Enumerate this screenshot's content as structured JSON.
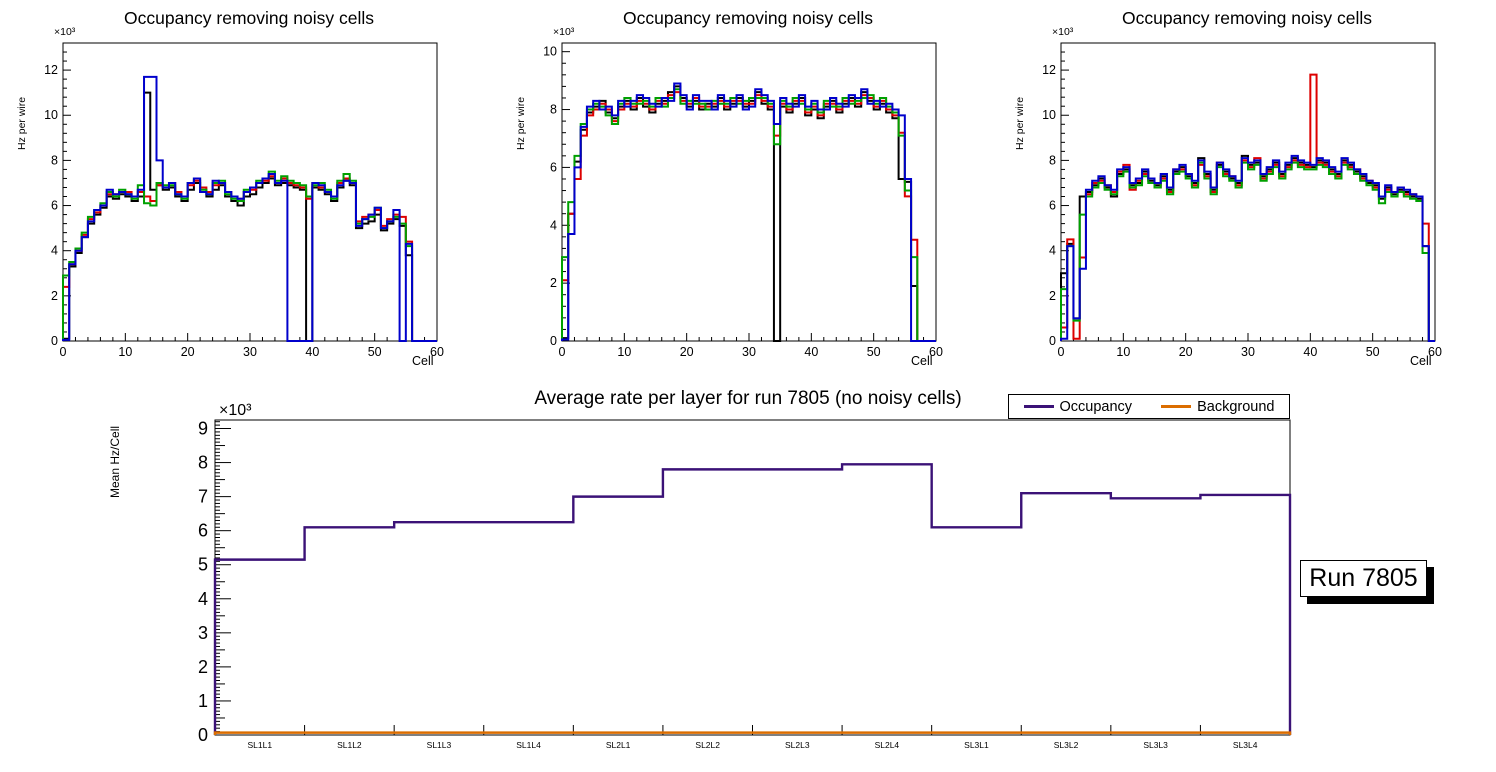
{
  "canvas": {
    "background": "#ffffff"
  },
  "chart_data": [
    {
      "id": "occupancy-hist-1",
      "type": "step-histogram",
      "title": "Occupancy removing noisy cells",
      "xlabel": "Cell",
      "ylabel": "Hz per wire",
      "power_label": "×10³",
      "unit": "values in ×10³ Hz",
      "xlim": [
        0,
        60
      ],
      "ylim": [
        0,
        13.2
      ],
      "xticks": [
        0,
        10,
        20,
        30,
        40,
        50,
        60
      ],
      "yticks": [
        0,
        2,
        4,
        6,
        8,
        10,
        12
      ],
      "x_minor_step": 2,
      "y_minor_step": 0.4,
      "grid": false,
      "series": [
        {
          "name": "black",
          "color": "#000000",
          "values": [
            0.1,
            3.3,
            3.9,
            4.6,
            5.2,
            5.6,
            5.9,
            6.4,
            6.3,
            6.5,
            6.4,
            6.2,
            6.4,
            11.0,
            6.7,
            6.9,
            6.7,
            6.8,
            6.4,
            6.2,
            6.7,
            7.0,
            6.6,
            6.4,
            6.7,
            6.9,
            6.4,
            6.2,
            6.0,
            6.4,
            6.5,
            6.8,
            7.0,
            7.2,
            6.9,
            7.0,
            6.9,
            6.8,
            6.7,
            0,
            6.8,
            6.7,
            6.5,
            6.2,
            6.8,
            7.1,
            6.9,
            5.0,
            5.2,
            5.3,
            5.6,
            4.9,
            5.2,
            5.4,
            5.1,
            3.8,
            0,
            0,
            0,
            0
          ]
        },
        {
          "name": "red",
          "color": "#DD0000",
          "values": [
            2.4,
            3.4,
            4.0,
            4.7,
            5.4,
            5.7,
            6.0,
            6.5,
            6.5,
            6.6,
            6.6,
            6.4,
            6.6,
            6.4,
            6.2,
            6.9,
            6.8,
            7.0,
            6.6,
            6.4,
            6.9,
            7.1,
            6.8,
            6.6,
            6.9,
            7.0,
            6.6,
            6.4,
            6.3,
            6.6,
            6.7,
            7.0,
            7.1,
            7.3,
            7.0,
            7.2,
            7.0,
            6.9,
            6.8,
            6.3,
            7.0,
            6.8,
            6.6,
            6.4,
            7.0,
            7.2,
            7.0,
            5.3,
            5.5,
            5.6,
            5.8,
            5.1,
            5.4,
            5.6,
            5.5,
            4.4,
            0,
            0,
            0,
            0
          ]
        },
        {
          "name": "green",
          "color": "#00A000",
          "values": [
            2.9,
            3.5,
            4.1,
            4.8,
            5.5,
            5.8,
            6.1,
            6.6,
            6.4,
            6.7,
            6.5,
            6.3,
            6.9,
            6.1,
            6.0,
            7.0,
            6.9,
            6.9,
            6.5,
            6.3,
            7.0,
            7.2,
            6.7,
            6.5,
            7.0,
            7.1,
            6.5,
            6.3,
            6.2,
            6.7,
            6.8,
            7.1,
            7.2,
            7.5,
            7.1,
            7.3,
            7.1,
            7.0,
            6.9,
            6.4,
            6.9,
            7.0,
            6.7,
            6.3,
            7.1,
            7.4,
            7.1,
            5.2,
            5.4,
            5.5,
            5.9,
            5.0,
            5.3,
            5.5,
            5.2,
            4.2,
            0,
            0,
            0,
            0
          ]
        },
        {
          "name": "blue",
          "color": "#0000CC",
          "values": [
            0.05,
            3.4,
            4.0,
            4.6,
            5.3,
            5.8,
            6.0,
            6.7,
            6.5,
            6.6,
            6.5,
            6.4,
            6.7,
            11.7,
            11.7,
            8.0,
            6.8,
            7.0,
            6.5,
            6.4,
            7.0,
            7.2,
            6.6,
            6.5,
            7.1,
            7.0,
            6.6,
            6.4,
            6.3,
            6.6,
            6.8,
            7.0,
            7.2,
            7.4,
            7.0,
            7.1,
            0,
            0,
            0,
            0,
            7.0,
            6.9,
            6.6,
            6.4,
            6.9,
            7.1,
            7.0,
            5.1,
            5.4,
            5.6,
            5.9,
            5.0,
            5.3,
            5.8,
            0,
            4.3,
            0,
            0,
            0,
            0
          ]
        }
      ]
    },
    {
      "id": "occupancy-hist-2",
      "type": "step-histogram",
      "title": "Occupancy removing noisy cells",
      "xlabel": "Cell",
      "ylabel": "Hz per wire",
      "power_label": "×10³",
      "unit": "values in ×10³ Hz",
      "xlim": [
        0,
        60
      ],
      "ylim": [
        0,
        10.3
      ],
      "xticks": [
        0,
        10,
        20,
        30,
        40,
        50,
        60
      ],
      "yticks": [
        0,
        2,
        4,
        6,
        8,
        10
      ],
      "x_minor_step": 2,
      "y_minor_step": 0.4,
      "grid": false,
      "series": [
        {
          "name": "black",
          "color": "#000000",
          "values": [
            0.1,
            4.4,
            6.2,
            7.3,
            7.9,
            8.1,
            8.3,
            7.9,
            7.7,
            8.1,
            8.3,
            8.0,
            8.4,
            8.1,
            7.9,
            8.2,
            8.3,
            8.6,
            8.8,
            8.4,
            8.1,
            8.3,
            8.0,
            8.2,
            8.1,
            8.4,
            8.0,
            8.2,
            8.4,
            8.1,
            8.3,
            8.6,
            8.2,
            8.0,
            0,
            8.1,
            7.9,
            8.2,
            8.4,
            7.8,
            8.0,
            7.7,
            8.1,
            8.3,
            7.9,
            8.2,
            8.4,
            8.1,
            8.6,
            8.3,
            8.0,
            8.2,
            7.9,
            7.7,
            5.6,
            5.5,
            1.9,
            0,
            0,
            0
          ]
        },
        {
          "name": "red",
          "color": "#DD0000",
          "values": [
            2.1,
            4.4,
            5.6,
            7.1,
            7.8,
            8.0,
            8.2,
            8.0,
            7.6,
            8.0,
            8.2,
            8.1,
            8.3,
            8.2,
            8.0,
            8.3,
            8.2,
            8.5,
            8.6,
            8.3,
            8.2,
            8.4,
            8.1,
            8.1,
            8.2,
            8.3,
            8.1,
            8.3,
            8.3,
            8.2,
            8.2,
            8.5,
            8.3,
            8.1,
            7.1,
            8.2,
            8.0,
            8.3,
            8.3,
            7.9,
            8.1,
            7.8,
            8.2,
            8.2,
            8.0,
            8.3,
            8.3,
            8.2,
            8.5,
            8.4,
            8.1,
            8.3,
            8.0,
            7.8,
            7.2,
            5.0,
            3.5,
            0,
            0,
            0
          ]
        },
        {
          "name": "green",
          "color": "#00A000",
          "values": [
            2.9,
            4.8,
            6.4,
            7.5,
            8.0,
            8.2,
            8.1,
            7.8,
            7.5,
            8.2,
            8.4,
            8.2,
            8.2,
            8.3,
            8.1,
            8.4,
            8.1,
            8.4,
            8.7,
            8.2,
            8.3,
            8.2,
            8.2,
            8.0,
            8.3,
            8.2,
            8.2,
            8.4,
            8.2,
            8.3,
            8.4,
            8.4,
            8.4,
            8.2,
            6.8,
            8.3,
            8.1,
            8.4,
            8.2,
            8.0,
            8.2,
            7.9,
            8.3,
            8.1,
            8.1,
            8.4,
            8.2,
            8.3,
            8.4,
            8.5,
            8.2,
            8.4,
            8.1,
            7.9,
            7.1,
            5.2,
            2.9,
            0,
            0,
            0
          ]
        },
        {
          "name": "blue",
          "color": "#0000CC",
          "values": [
            0.05,
            3.7,
            6.0,
            7.4,
            8.1,
            8.3,
            8.0,
            8.1,
            7.8,
            8.3,
            8.1,
            8.3,
            8.5,
            8.4,
            8.2,
            8.1,
            8.4,
            8.3,
            8.9,
            8.5,
            8.0,
            8.5,
            8.3,
            8.3,
            8.0,
            8.5,
            8.3,
            8.1,
            8.5,
            8.0,
            8.1,
            8.7,
            8.5,
            8.3,
            7.5,
            8.4,
            8.2,
            8.1,
            8.5,
            8.1,
            8.3,
            8.0,
            8.0,
            8.4,
            8.2,
            8.1,
            8.5,
            8.4,
            8.7,
            8.2,
            8.3,
            8.1,
            8.2,
            8.0,
            7.8,
            5.6,
            0,
            0,
            0,
            0
          ]
        }
      ]
    },
    {
      "id": "occupancy-hist-3",
      "type": "step-histogram",
      "title": "Occupancy removing noisy cells",
      "xlabel": "Cell",
      "ylabel": "Hz per wire",
      "power_label": "×10³",
      "unit": "values in ×10³ Hz",
      "xlim": [
        0,
        60
      ],
      "ylim": [
        0,
        13.2
      ],
      "xticks": [
        0,
        10,
        20,
        30,
        40,
        50,
        60
      ],
      "yticks": [
        0,
        2,
        4,
        6,
        8,
        10,
        12
      ],
      "x_minor_step": 2,
      "y_minor_step": 0.4,
      "grid": false,
      "series": [
        {
          "name": "black",
          "color": "#000000",
          "values": [
            3.0,
            4.3,
            1.0,
            6.4,
            6.6,
            6.9,
            7.2,
            6.8,
            6.4,
            7.4,
            7.6,
            6.9,
            7.0,
            7.5,
            7.1,
            6.9,
            7.3,
            6.7,
            7.5,
            7.7,
            7.3,
            7.0,
            8.1,
            7.4,
            6.7,
            7.8,
            7.5,
            7.2,
            7.0,
            8.2,
            7.8,
            7.9,
            7.3,
            7.6,
            7.9,
            7.4,
            7.8,
            8.1,
            7.9,
            7.8,
            7.7,
            8.0,
            7.9,
            7.6,
            7.4,
            8.0,
            7.8,
            7.5,
            7.3,
            7.0,
            6.9,
            6.3,
            6.8,
            6.5,
            6.7,
            6.6,
            6.4,
            6.3,
            4.2,
            0
          ]
        },
        {
          "name": "red",
          "color": "#DD0000",
          "values": [
            0.6,
            4.5,
            0.1,
            3.7,
            6.5,
            7.0,
            7.1,
            6.9,
            6.6,
            7.5,
            7.8,
            6.7,
            7.1,
            7.4,
            7.2,
            6.8,
            7.2,
            6.6,
            7.6,
            7.6,
            7.4,
            6.9,
            7.8,
            7.3,
            6.6,
            7.9,
            7.4,
            7.3,
            6.9,
            8.0,
            7.7,
            8.1,
            7.2,
            7.5,
            7.8,
            7.3,
            7.7,
            8.0,
            7.8,
            7.7,
            11.8,
            7.9,
            7.8,
            7.5,
            7.3,
            7.9,
            7.7,
            7.6,
            7.2,
            7.1,
            6.8,
            6.4,
            6.7,
            6.6,
            6.8,
            6.5,
            6.5,
            6.4,
            5.2,
            0
          ]
        },
        {
          "name": "green",
          "color": "#00A000",
          "values": [
            2.3,
            4.2,
            0.9,
            5.6,
            6.4,
            6.8,
            7.0,
            6.7,
            6.5,
            7.3,
            7.5,
            6.8,
            6.9,
            7.3,
            7.0,
            6.8,
            7.1,
            6.5,
            7.4,
            7.5,
            7.2,
            6.8,
            7.9,
            7.2,
            6.5,
            7.7,
            7.3,
            7.1,
            6.8,
            7.9,
            7.6,
            7.8,
            7.1,
            7.4,
            7.7,
            7.2,
            7.6,
            7.9,
            7.7,
            7.6,
            7.6,
            7.8,
            7.7,
            7.4,
            7.2,
            7.8,
            7.6,
            7.4,
            7.1,
            6.9,
            6.7,
            6.1,
            6.6,
            6.4,
            6.6,
            6.4,
            6.3,
            6.2,
            3.9,
            0
          ]
        },
        {
          "name": "blue",
          "color": "#0000CC",
          "values": [
            0.1,
            4.2,
            1.0,
            3.2,
            6.7,
            7.1,
            7.3,
            6.9,
            6.7,
            7.6,
            7.7,
            7.0,
            7.2,
            7.6,
            7.2,
            7.0,
            7.4,
            6.8,
            7.6,
            7.8,
            7.4,
            7.1,
            8.0,
            7.5,
            6.8,
            7.9,
            7.6,
            7.3,
            7.1,
            8.1,
            7.9,
            8.0,
            7.4,
            7.7,
            8.0,
            7.5,
            7.9,
            8.2,
            8.0,
            7.9,
            7.8,
            8.1,
            8.0,
            7.7,
            7.5,
            8.1,
            7.9,
            7.6,
            7.4,
            7.1,
            7.0,
            6.4,
            6.9,
            6.6,
            6.8,
            6.7,
            6.5,
            6.4,
            4.2,
            0
          ]
        }
      ]
    },
    {
      "id": "average-rate-per-layer",
      "type": "step-line",
      "title": "Average rate per layer for run 7805 (no noisy cells)",
      "xlabel": "",
      "ylabel": "Mean Hz/Cell",
      "power_label": "×10³",
      "unit": "values in ×10³ Hz",
      "categories": [
        "SL1L1",
        "SL1L2",
        "SL1L3",
        "SL1L4",
        "SL2L1",
        "SL2L2",
        "SL2L3",
        "SL2L4",
        "SL3L1",
        "SL3L2",
        "SL3L3",
        "SL3L4"
      ],
      "ylim": [
        0,
        9.25
      ],
      "yticks": [
        0,
        1,
        2,
        3,
        4,
        5,
        6,
        7,
        8,
        9
      ],
      "y_minor_step": 0.1,
      "y_medium_step": 0.5,
      "grid": false,
      "legend_position": "top-right",
      "series": [
        {
          "name": "Occupancy",
          "color": "#3B1277",
          "values": [
            5.15,
            6.1,
            6.25,
            6.25,
            7.0,
            7.8,
            7.8,
            7.95,
            6.1,
            7.1,
            6.95,
            7.05
          ]
        },
        {
          "name": "Background",
          "color": "#DB6D00",
          "values": [
            0.07,
            0.07,
            0.07,
            0.07,
            0.07,
            0.07,
            0.07,
            0.07,
            0.07,
            0.07,
            0.07,
            0.07
          ]
        }
      ],
      "legend": {
        "entries": [
          {
            "label": "Occupancy",
            "color": "#3B1277"
          },
          {
            "label": "Background",
            "color": "#DB6D00"
          }
        ]
      },
      "run_label": "Run 7805"
    }
  ]
}
